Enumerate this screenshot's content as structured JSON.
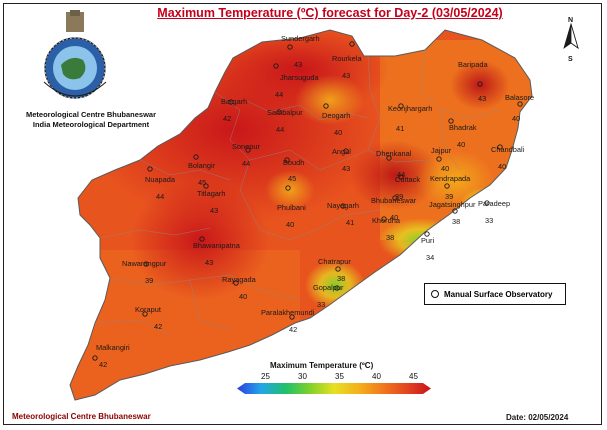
{
  "title": "Maximum Temperature (ºC) forecast for Day-2 (03/05/2024)",
  "org": {
    "line1": "Meteorological Centre Bhubaneswar",
    "line2": "India Meteorological Department"
  },
  "north": {
    "n": "N",
    "s": "S"
  },
  "legend": {
    "label": "Manual Surface Observatory"
  },
  "colorbar": {
    "title": "Maximum Temperature (ºC)",
    "ticks": [
      "25",
      "30",
      "35",
      "40",
      "45"
    ],
    "colors": [
      "#2a3fe0",
      "#23a6e8",
      "#1fbf6b",
      "#7fd12a",
      "#e6e022",
      "#f4b21b",
      "#f07a1c",
      "#e3451f",
      "#c8141a"
    ]
  },
  "footer": {
    "left": "Meteorological Centre Bhubaneswar",
    "right": "Date: 02/05/2024"
  },
  "stations": [
    {
      "name": "Sundergarh",
      "value": "43"
    },
    {
      "name": "Rourkela",
      "value": "43"
    },
    {
      "name": "Jharsuguda",
      "value": "44"
    },
    {
      "name": "Baripada",
      "value": "43"
    },
    {
      "name": "Balasore",
      "value": "40"
    },
    {
      "name": "Bargarh",
      "value": "42"
    },
    {
      "name": "Sambalpur",
      "value": "44"
    },
    {
      "name": "Deogarh",
      "value": "40"
    },
    {
      "name": "Keonjhargarh",
      "value": "41"
    },
    {
      "name": "Bhadrak",
      "value": "40"
    },
    {
      "name": "Chandbali",
      "value": "40"
    },
    {
      "name": "Sonepur",
      "value": "44"
    },
    {
      "name": "Angul",
      "value": "43"
    },
    {
      "name": "Dhenkanal",
      "value": "44"
    },
    {
      "name": "Jajpur",
      "value": "40"
    },
    {
      "name": "Bolangir",
      "value": "45"
    },
    {
      "name": "Boudh",
      "value": "45"
    },
    {
      "name": "Nuapada",
      "value": "44"
    },
    {
      "name": "Titlagarh",
      "value": "43"
    },
    {
      "name": "Cuttack",
      "value": "39"
    },
    {
      "name": "Kendrapada",
      "value": "39"
    },
    {
      "name": "Phulbani",
      "value": "40"
    },
    {
      "name": "Nayagarh",
      "value": "41"
    },
    {
      "name": "Bhubaneswar",
      "value": "40"
    },
    {
      "name": "Jagatsinghpur",
      "value": "38"
    },
    {
      "name": "Paradeep",
      "value": "33"
    },
    {
      "name": "Khordha",
      "value": "38"
    },
    {
      "name": "Bhawanipatna",
      "value": "43"
    },
    {
      "name": "Puri",
      "value": "34"
    },
    {
      "name": "Nawarangpur",
      "value": "39"
    },
    {
      "name": "Rayagada",
      "value": "40"
    },
    {
      "name": "Chatrapur",
      "value": "38"
    },
    {
      "name": "Gopalpur",
      "value": "33"
    },
    {
      "name": "Koraput",
      "value": "42"
    },
    {
      "name": "Paralakhemundi",
      "value": "42"
    },
    {
      "name": "Malkangiri",
      "value": "42"
    }
  ]
}
